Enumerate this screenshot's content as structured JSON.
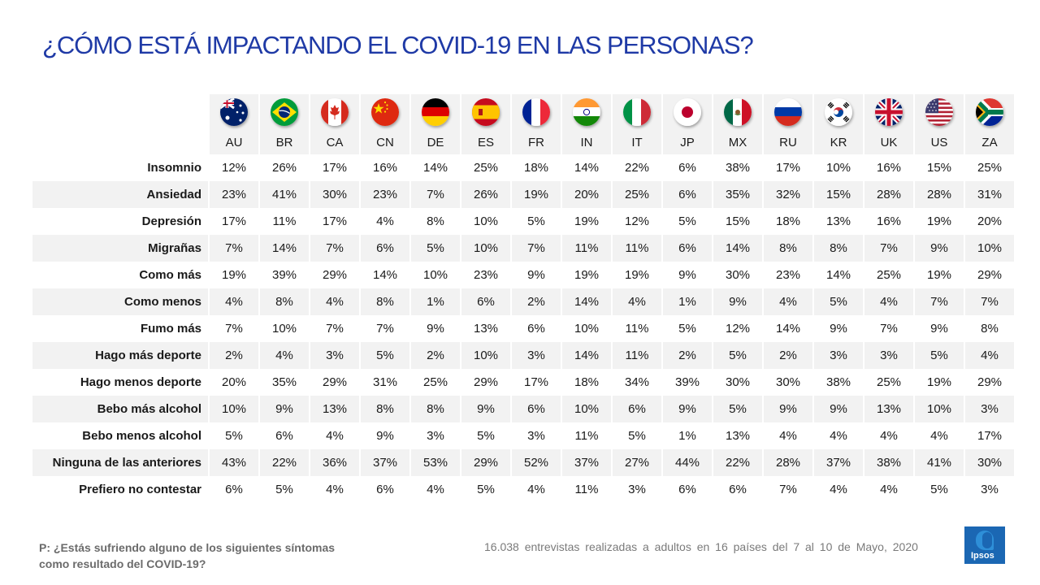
{
  "title": "¿CÓMO ESTÁ IMPACTANDO EL COVID-19 EN LAS PERSONAS?",
  "countries": [
    "AU",
    "BR",
    "CA",
    "CN",
    "DE",
    "ES",
    "FR",
    "IN",
    "IT",
    "JP",
    "MX",
    "RU",
    "KR",
    "UK",
    "US",
    "ZA"
  ],
  "flags": [
    "australia-flag-icon",
    "brazil-flag-icon",
    "canada-flag-icon",
    "china-flag-icon",
    "germany-flag-icon",
    "spain-flag-icon",
    "france-flag-icon",
    "india-flag-icon",
    "italy-flag-icon",
    "japan-flag-icon",
    "mexico-flag-icon",
    "russia-flag-icon",
    "korea-flag-icon",
    "uk-flag-icon",
    "usa-flag-icon",
    "south-africa-flag-icon"
  ],
  "rows": [
    {
      "label": "Insomnio",
      "values": [
        "12%",
        "26%",
        "17%",
        "16%",
        "14%",
        "25%",
        "18%",
        "14%",
        "22%",
        "6%",
        "38%",
        "17%",
        "10%",
        "16%",
        "15%",
        "25%"
      ]
    },
    {
      "label": "Ansiedad",
      "values": [
        "23%",
        "41%",
        "30%",
        "23%",
        "7%",
        "26%",
        "19%",
        "20%",
        "25%",
        "6%",
        "35%",
        "32%",
        "15%",
        "28%",
        "28%",
        "31%"
      ]
    },
    {
      "label": "Depresión",
      "values": [
        "17%",
        "11%",
        "17%",
        "4%",
        "8%",
        "10%",
        "5%",
        "19%",
        "12%",
        "5%",
        "15%",
        "18%",
        "13%",
        "16%",
        "19%",
        "20%"
      ]
    },
    {
      "label": "Migrañas",
      "values": [
        "7%",
        "14%",
        "7%",
        "6%",
        "5%",
        "10%",
        "7%",
        "11%",
        "11%",
        "6%",
        "14%",
        "8%",
        "8%",
        "7%",
        "9%",
        "10%"
      ]
    },
    {
      "label": "Como más",
      "values": [
        "19%",
        "39%",
        "29%",
        "14%",
        "10%",
        "23%",
        "9%",
        "19%",
        "19%",
        "9%",
        "30%",
        "23%",
        "14%",
        "25%",
        "19%",
        "29%"
      ]
    },
    {
      "label": "Como menos",
      "values": [
        "4%",
        "8%",
        "4%",
        "8%",
        "1%",
        "6%",
        "2%",
        "14%",
        "4%",
        "1%",
        "9%",
        "4%",
        "5%",
        "4%",
        "7%",
        "7%"
      ]
    },
    {
      "label": "Fumo más",
      "values": [
        "7%",
        "10%",
        "7%",
        "7%",
        "9%",
        "13%",
        "6%",
        "10%",
        "11%",
        "5%",
        "12%",
        "14%",
        "9%",
        "7%",
        "9%",
        "8%"
      ]
    },
    {
      "label": "Hago más deporte",
      "values": [
        "2%",
        "4%",
        "3%",
        "5%",
        "2%",
        "10%",
        "3%",
        "14%",
        "11%",
        "2%",
        "5%",
        "2%",
        "3%",
        "3%",
        "5%",
        "4%"
      ]
    },
    {
      "label": "Hago menos deporte",
      "values": [
        "20%",
        "35%",
        "29%",
        "31%",
        "25%",
        "29%",
        "17%",
        "18%",
        "34%",
        "39%",
        "30%",
        "30%",
        "38%",
        "25%",
        "19%",
        "29%"
      ]
    },
    {
      "label": "Bebo más alcohol",
      "values": [
        "10%",
        "9%",
        "13%",
        "8%",
        "8%",
        "9%",
        "6%",
        "10%",
        "6%",
        "9%",
        "5%",
        "9%",
        "9%",
        "13%",
        "10%",
        "3%"
      ]
    },
    {
      "label": "Bebo menos alcohol",
      "values": [
        "5%",
        "6%",
        "4%",
        "9%",
        "3%",
        "5%",
        "3%",
        "11%",
        "5%",
        "1%",
        "13%",
        "4%",
        "4%",
        "4%",
        "4%",
        "17%"
      ]
    },
    {
      "label": "Ninguna de las anteriores",
      "values": [
        "43%",
        "22%",
        "36%",
        "37%",
        "53%",
        "29%",
        "52%",
        "37%",
        "27%",
        "44%",
        "22%",
        "28%",
        "37%",
        "38%",
        "41%",
        "30%"
      ]
    },
    {
      "label": "Prefiero no contestar",
      "values": [
        "6%",
        "5%",
        "4%",
        "6%",
        "4%",
        "5%",
        "4%",
        "11%",
        "3%",
        "6%",
        "6%",
        "7%",
        "4%",
        "4%",
        "5%",
        "3%"
      ]
    }
  ],
  "footnote_line1": "P: ¿Estás sufriendo alguno de los siguientes síntomas",
  "footnote_line2": "como resultado del COVID-19?",
  "source": "16.038 entrevistas realizadas a adultos en 16 países del 7 al 10 de Mayo, 2020",
  "logo_text": "Ipsos",
  "colors": {
    "title": "#1f3aa6",
    "shade": "#f2f2f2",
    "logo": "#1b67b3"
  }
}
